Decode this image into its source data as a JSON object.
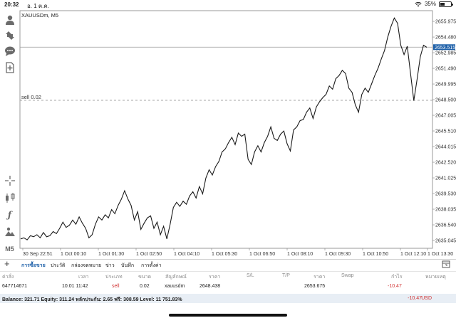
{
  "status": {
    "time": "20:32",
    "date": "อ. 1 ต.ค.",
    "battery": "35%",
    "battery_level": 0.35
  },
  "chart": {
    "symbol": "XAUUSDm, M5",
    "sell_label": "sell 0.02",
    "current_price": "2653.515",
    "y_ticks": [
      "2655.975",
      "2654.480",
      "2652.985",
      "2651.490",
      "2649.995",
      "2648.500",
      "2647.005",
      "2645.510",
      "2644.015",
      "2642.520",
      "2641.025",
      "2639.530",
      "2638.035",
      "2636.540",
      "2635.045"
    ],
    "x_ticks": [
      "30 Sep 22:51",
      "1 Oct 00:10",
      "1 Oct 01:30",
      "1 Oct 02:50",
      "1 Oct 04:10",
      "1 Oct 05:30",
      "1 Oct 06:50",
      "1 Oct 08:10",
      "1 Oct 09:30",
      "1 Oct 10:50",
      "1 Oct 12:10",
      "1 Oct 13:30"
    ]
  },
  "chart_data": {
    "type": "line",
    "title": "XAUUSDm, M5",
    "xlabel": "",
    "ylabel": "",
    "ylim": [
      2634.3,
      2657.0
    ],
    "current_price": 2653.515,
    "sell_level": 2648.438,
    "values": [
      2635.2,
      2635.3,
      2635.1,
      2635.5,
      2635.4,
      2635.6,
      2635.3,
      2635.8,
      2635.4,
      2635.5,
      2635.9,
      2635.7,
      2636.2,
      2636.8,
      2636.3,
      2636.5,
      2637.0,
      2636.6,
      2637.3,
      2636.7,
      2636.2,
      2635.3,
      2635.6,
      2636.6,
      2637.3,
      2637.0,
      2637.5,
      2637.2,
      2638.0,
      2637.6,
      2638.4,
      2639.0,
      2639.8,
      2639.0,
      2638.4,
      2637.0,
      2637.8,
      2636.1,
      2636.7,
      2637.2,
      2637.4,
      2636.2,
      2636.8,
      2635.6,
      2636.4,
      2635.2,
      2636.6,
      2638.2,
      2638.7,
      2638.3,
      2638.8,
      2638.5,
      2639.3,
      2639.7,
      2639.1,
      2640.2,
      2639.5,
      2641.0,
      2641.8,
      2641.3,
      2642.1,
      2642.6,
      2643.5,
      2643.8,
      2644.4,
      2644.9,
      2644.2,
      2645.3,
      2645.0,
      2645.2,
      2642.8,
      2642.3,
      2643.5,
      2644.1,
      2643.5,
      2644.4,
      2645.0,
      2645.9,
      2644.8,
      2644.6,
      2645.2,
      2645.5,
      2644.3,
      2643.6,
      2645.6,
      2645.9,
      2646.5,
      2646.6,
      2647.3,
      2647.7,
      2646.7,
      2647.8,
      2648.3,
      2648.7,
      2649.0,
      2649.8,
      2649.5,
      2650.5,
      2650.8,
      2651.3,
      2651.0,
      2649.6,
      2649.2,
      2648.0,
      2647.3,
      2649.0,
      2649.6,
      2649.2,
      2650.0,
      2650.8,
      2651.5,
      2652.4,
      2653.2,
      2654.5,
      2655.5,
      2656.3,
      2655.8,
      2653.7,
      2652.8,
      2653.6,
      2651.0,
      2648.4,
      2650.4,
      2652.6,
      2653.7,
      2653.5
    ]
  },
  "terminal": {
    "tabs": [
      "การซื้อขาย",
      "ประวัติ",
      "กล่องจดหมาย",
      "ข่าว",
      "บันทึก",
      "การตั้งค่า"
    ],
    "columns": [
      "ค่าสั่ง",
      "เวลา",
      "ประเภท",
      "ขนาด",
      "สัญลักษณ์",
      "ราคา",
      "S/L",
      "T/P",
      "ราคา",
      "Swap",
      "กำไร",
      "หมายเหตุ"
    ],
    "position": {
      "ticket": "647714671",
      "time": "10.01 11:42",
      "type": "sell",
      "volume": "0.02",
      "symbol": "xauusdm",
      "open_price": "2648.438",
      "price": "2653.675",
      "profit": "-10.47"
    },
    "balance_text": "Balance: 321.71 Equity: 311.24 หลักประกัน: 2.65 ฟรี: 308.59 Level: 11 751.83%",
    "total_profit": "-10.47",
    "currency": "USD"
  },
  "colors": {
    "accent": "#1c5fa8",
    "loss": "#d03030"
  }
}
